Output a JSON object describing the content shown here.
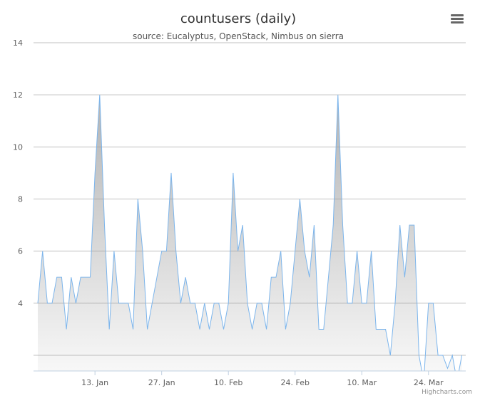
{
  "chart_data": {
    "type": "area",
    "title": "countusers (daily)",
    "subtitle": "source: Eucalyptus, OpenStack, Nimbus on sierra",
    "x_start": "2013-01-01",
    "x_tick_labels": [
      "13. Jan",
      "27. Jan",
      "10. Feb",
      "24. Feb",
      "10. Mar",
      "24. Mar"
    ],
    "x_tick_dates": [
      "2013-01-13",
      "2013-01-27",
      "2013-02-10",
      "2013-02-24",
      "2013-03-10",
      "2013-03-24"
    ],
    "y_tick_labels": [
      "4",
      "6",
      "8",
      "10",
      "12",
      "14"
    ],
    "ylim": [
      1.4,
      14
    ],
    "grid": true,
    "series": [
      {
        "values": [
          4,
          6,
          4,
          4,
          5,
          5,
          3,
          5,
          4,
          5,
          5,
          5,
          9,
          12,
          7,
          3,
          6,
          4,
          4,
          4,
          3,
          8,
          6,
          3,
          4,
          5,
          6,
          6,
          9,
          6,
          4,
          5,
          4,
          4,
          3,
          4,
          3,
          4,
          4,
          3,
          4,
          9,
          6,
          7,
          4,
          3,
          4,
          4,
          3,
          5,
          5,
          6,
          3,
          4,
          6,
          8,
          6,
          5,
          7,
          3,
          3,
          5,
          7,
          12,
          7,
          4,
          4,
          6,
          4,
          4,
          6,
          3,
          3,
          3,
          2,
          4,
          7,
          5,
          7,
          7,
          2,
          1,
          4,
          4,
          2,
          2,
          1.5,
          2,
          1,
          2
        ],
        "color": "#7cb5ec"
      }
    ],
    "credit": "Highcharts.com"
  },
  "menu_icon": "hamburger-menu-icon"
}
